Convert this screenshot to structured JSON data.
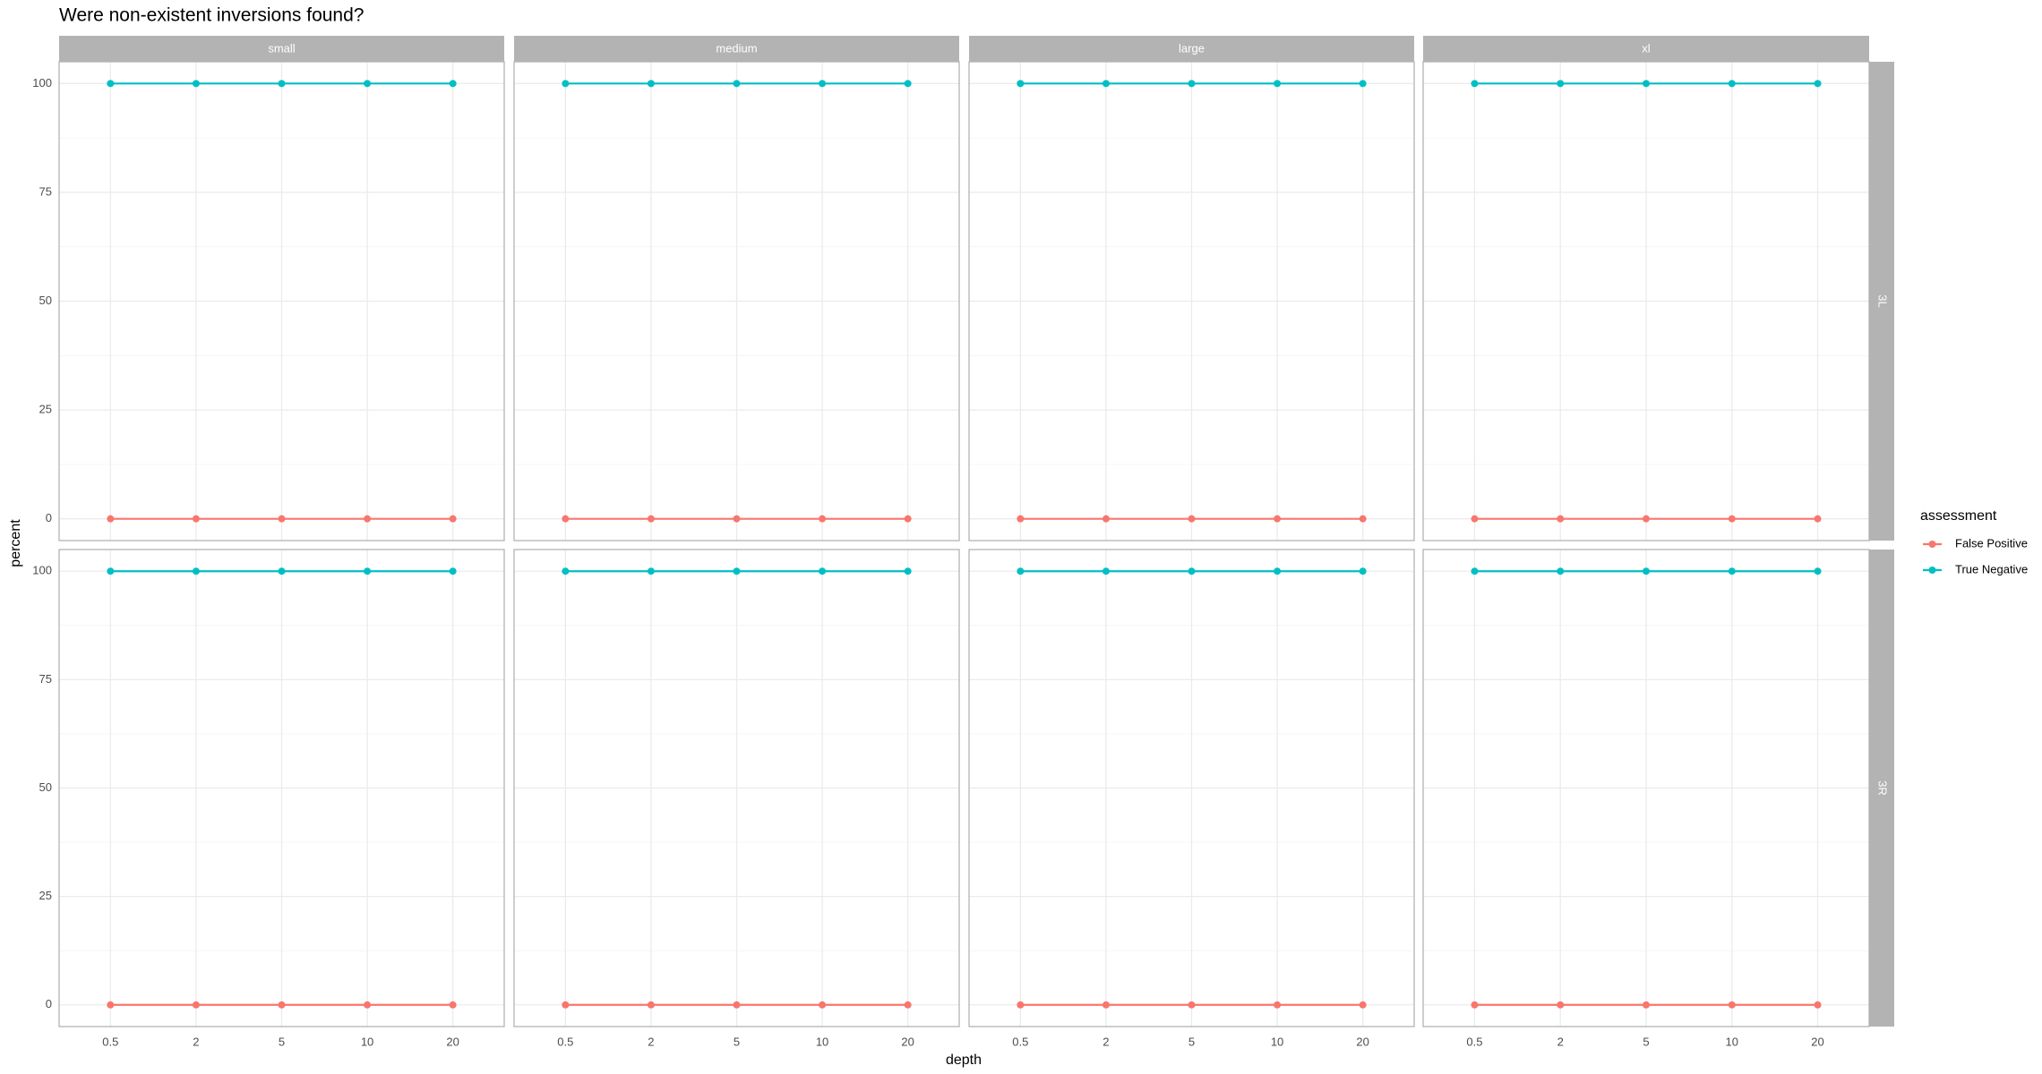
{
  "chart_data": {
    "type": "line",
    "title": "Were non-existent inversions found?",
    "xlabel": "depth",
    "ylabel": "percent",
    "legend_title": "assessment",
    "categories": [
      "0.5",
      "2",
      "5",
      "10",
      "20"
    ],
    "col_facets": [
      "small",
      "medium",
      "large",
      "xl"
    ],
    "row_facets": [
      "3L",
      "3R"
    ],
    "ylim": [
      -5,
      105
    ],
    "yticks": [
      0,
      25,
      50,
      75,
      100
    ],
    "grid": true,
    "series": [
      {
        "name": "False Positive",
        "color": "#F8766D",
        "values": [
          [
            [
              0,
              0,
              0,
              0,
              0
            ],
            [
              0,
              0,
              0,
              0,
              0
            ],
            [
              0,
              0,
              0,
              0,
              0
            ],
            [
              0,
              0,
              0,
              0,
              0
            ]
          ],
          [
            [
              0,
              0,
              0,
              0,
              0
            ],
            [
              0,
              0,
              0,
              0,
              0
            ],
            [
              0,
              0,
              0,
              0,
              0
            ],
            [
              0,
              0,
              0,
              0,
              0
            ]
          ]
        ]
      },
      {
        "name": "True Negative",
        "color": "#00BFC4",
        "values": [
          [
            [
              100,
              100,
              100,
              100,
              100
            ],
            [
              100,
              100,
              100,
              100,
              100
            ],
            [
              100,
              100,
              100,
              100,
              100
            ],
            [
              100,
              100,
              100,
              100,
              100
            ]
          ],
          [
            [
              100,
              100,
              100,
              100,
              100
            ],
            [
              100,
              100,
              100,
              100,
              100
            ],
            [
              100,
              100,
              100,
              100,
              100
            ],
            [
              100,
              100,
              100,
              100,
              100
            ]
          ]
        ]
      }
    ]
  }
}
